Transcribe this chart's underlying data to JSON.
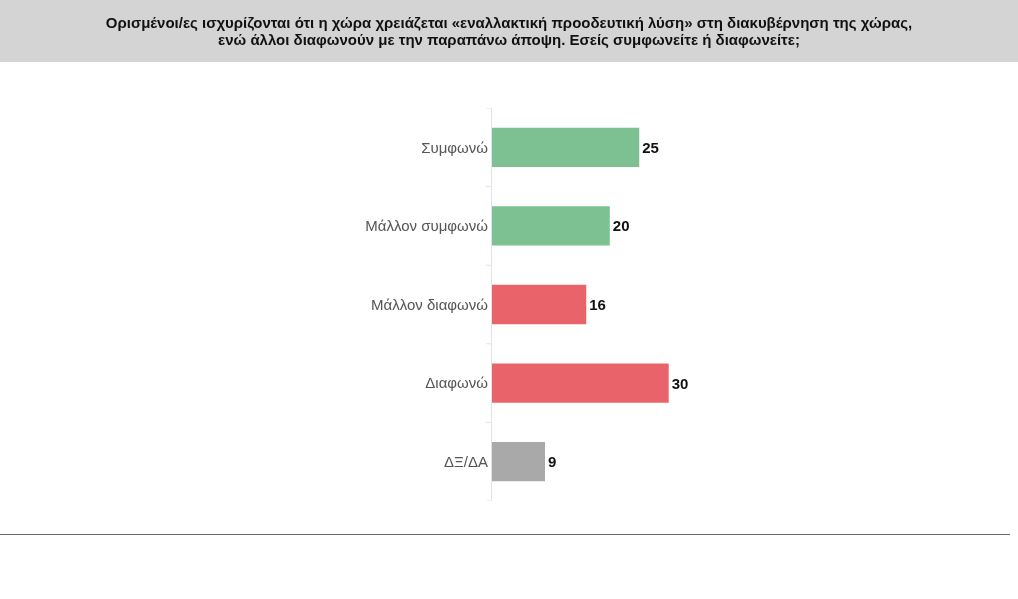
{
  "chart_data": {
    "type": "bar",
    "orientation": "horizontal",
    "title": "Ορισμένοι/ες ισχυρίζονται ότι η χώρα χρειάζεται «εναλλακτική προοδευτική λύση» στη διακυβέρνηση της χώρας, ενώ άλλοι διαφωνούν με την παραπάνω άποψη. Εσείς συμφωνείτε ή διαφωνείτε;",
    "categories": [
      "Συμφωνώ",
      "Μάλλον συμφωνώ",
      "Μάλλον διαφωνώ",
      "Διαφωνώ",
      "ΔΞ/ΔΑ"
    ],
    "values": [
      25,
      20,
      16,
      30,
      9
    ],
    "colors": [
      "#7dc092",
      "#7dc092",
      "#e9646a",
      "#e9646a",
      "#a9a9a9"
    ],
    "data_labels": true,
    "tick_labels": "y"
  }
}
